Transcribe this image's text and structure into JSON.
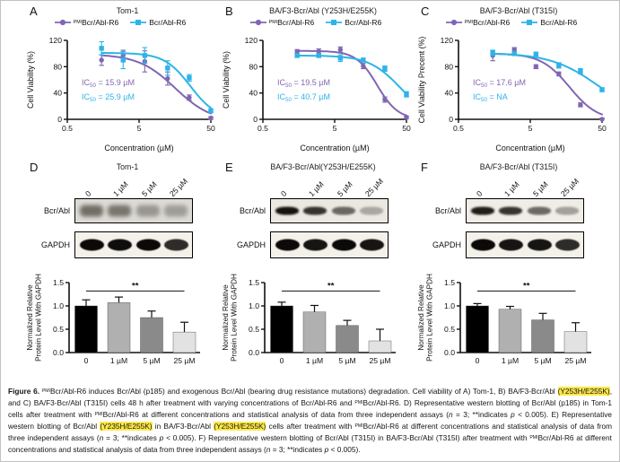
{
  "labels": {
    "pmi": "PMI"
  },
  "panels": [
    {
      "letter": "A"
    },
    {
      "letter": "B"
    },
    {
      "letter": "C"
    },
    {
      "letter": "D"
    },
    {
      "letter": "E"
    },
    {
      "letter": "F"
    }
  ],
  "chart_data": [
    {
      "id": "A",
      "type": "line-scatter",
      "title": "Tom-1",
      "xlabel": "Concentration (µM)",
      "ylabel": "Cell Viability (%)",
      "xscale": "log",
      "xlim": [
        0.5,
        50
      ],
      "xtick_values": [
        0.5,
        5,
        50
      ],
      "xticks": [
        "0.5",
        "5",
        "50"
      ],
      "ylim": [
        0,
        120
      ],
      "yticks": [
        0,
        40,
        80,
        120
      ],
      "legend_position": "top",
      "series": [
        {
          "name": "Bcr/Abl-R6",
          "name_sup": "PMI",
          "color": "#8066b2",
          "marker": "circle",
          "x": [
            1.5,
            3,
            6,
            12.5,
            25,
            50
          ],
          "y": [
            90,
            97,
            88,
            62,
            33,
            2
          ],
          "err": [
            8,
            8,
            16,
            10,
            4,
            2
          ],
          "fit": {
            "top": 99,
            "bottom": -4,
            "ic50": 15.9,
            "hill": 1.7
          }
        },
        {
          "name": "Bcr/Abl-R6",
          "name_sup": "",
          "color": "#2cb4e8",
          "marker": "square",
          "x": [
            1.5,
            3,
            6,
            12.5,
            25,
            50
          ],
          "y": [
            108,
            90,
            97,
            78,
            63,
            13
          ],
          "err": [
            10,
            13,
            12,
            11,
            5,
            3
          ],
          "fit": {
            "top": 101,
            "bottom": 0,
            "ic50": 25.9,
            "hill": 2.4
          }
        }
      ],
      "ic50_annotations": [
        {
          "prefix": "IC",
          "sub": "50",
          "text": " = 15.9 µM",
          "color": "#8066b2"
        },
        {
          "prefix": "IC",
          "sub": "50",
          "text": " = 25.9 µM",
          "color": "#2cb4e8"
        }
      ]
    },
    {
      "id": "B",
      "type": "line-scatter",
      "title": "BA/F3-Bcr/Abl (Y253H/E255K)",
      "xlabel": "Concentration (µM)",
      "ylabel": "Cell Viability (%)",
      "xscale": "log",
      "xlim": [
        0.5,
        50
      ],
      "xtick_values": [
        0.5,
        5,
        50
      ],
      "xticks": [
        "0.5",
        "5",
        "50"
      ],
      "ylim": [
        0,
        120
      ],
      "yticks": [
        0,
        40,
        80,
        120
      ],
      "legend_position": "top",
      "series": [
        {
          "name": "Bcr/Abl-R6",
          "name_sup": "PMI",
          "color": "#8066b2",
          "marker": "circle",
          "x": [
            1.5,
            3,
            6,
            12.5,
            25,
            50
          ],
          "y": [
            103,
            103,
            106,
            81,
            30,
            3
          ],
          "err": [
            3,
            4,
            4,
            4,
            4,
            2
          ],
          "fit": {
            "top": 104,
            "bottom": 0,
            "ic50": 19.5,
            "hill": 3.0
          }
        },
        {
          "name": "Bcr/Abl-R6",
          "name_sup": "",
          "color": "#2cb4e8",
          "marker": "square",
          "x": [
            1.5,
            3,
            6,
            12.5,
            25,
            50
          ],
          "y": [
            97,
            97,
            93,
            90,
            77,
            38
          ],
          "err": [
            3,
            3,
            5,
            3,
            4,
            4
          ],
          "fit": {
            "top": 97,
            "bottom": 0,
            "ic50": 40.7,
            "hill": 2.0
          }
        }
      ],
      "ic50_annotations": [
        {
          "prefix": "IC",
          "sub": "50",
          "text": " = 19.5 µM",
          "color": "#8066b2"
        },
        {
          "prefix": "IC",
          "sub": "50",
          "text": " = 40.7 µM",
          "color": "#2cb4e8"
        }
      ]
    },
    {
      "id": "C",
      "type": "line-scatter",
      "title": "BA/F3-Bcr/Abl (T315I)",
      "xlabel": "Concentration (µM)",
      "ylabel": "Cell Viability Precent (%)",
      "xscale": "log",
      "xlim": [
        0.5,
        50
      ],
      "xtick_values": [
        0.5,
        5,
        50
      ],
      "xticks": [
        "0.5",
        "5",
        "50"
      ],
      "ylim": [
        0,
        120
      ],
      "yticks": [
        0,
        40,
        80,
        120
      ],
      "legend_position": "top",
      "series": [
        {
          "name": "Bcr/Abl-R6",
          "name_sup": "PMI",
          "color": "#8066b2",
          "marker": "circle",
          "x": [
            1.5,
            3,
            6,
            12.5,
            25,
            50
          ],
          "y": [
            97,
            106,
            80,
            69,
            22,
            0
          ],
          "err": [
            8,
            3,
            3,
            3,
            3,
            2
          ],
          "fit": {
            "top": 100,
            "bottom": -2,
            "ic50": 17.6,
            "hill": 2.2
          }
        },
        {
          "name": "Bcr/Abl-R6",
          "name_sup": "",
          "color": "#2cb4e8",
          "marker": "square",
          "x": [
            1.5,
            3,
            6,
            12.5,
            25,
            50
          ],
          "y": [
            101,
            100,
            99,
            82,
            73,
            45
          ],
          "err": [
            4,
            3,
            3,
            4,
            4,
            3
          ],
          "fit": {
            "top": 101,
            "bottom": 0,
            "ic50": 45,
            "hill": 1.3
          }
        }
      ],
      "ic50_annotations": [
        {
          "prefix": "IC",
          "sub": "50",
          "text": " = 17.6 µM",
          "color": "#8066b2"
        },
        {
          "prefix": "IC",
          "sub": "50",
          "text": " = NA",
          "color": "#2cb4e8"
        }
      ]
    },
    {
      "id": "D",
      "type": "bar",
      "categories": [
        "0",
        "1 µM",
        "5 µM",
        "25 µM"
      ],
      "values": [
        1.0,
        1.07,
        0.75,
        0.44
      ],
      "errors": [
        0.13,
        0.12,
        0.14,
        0.21
      ],
      "bar_colors": [
        "#000000",
        "#b0b0b0",
        "#8a8a8a",
        "#e2e2e2"
      ],
      "ylabel_lines": [
        "Normalized Relative",
        "Protein Level With GAPDH"
      ],
      "ylim": [
        0,
        1.5
      ],
      "ytick_values": [
        0,
        0.5,
        1.0,
        1.5
      ],
      "yticks": [
        "0.0",
        "0.5",
        "1.0",
        "1.5"
      ],
      "significance": {
        "label": "**",
        "from": 0,
        "to": 3,
        "y": 1.32
      }
    },
    {
      "id": "E",
      "type": "bar",
      "categories": [
        "0",
        "1 µM",
        "5 µM",
        "25 µM"
      ],
      "values": [
        1.0,
        0.87,
        0.58,
        0.25
      ],
      "errors": [
        0.08,
        0.14,
        0.11,
        0.25
      ],
      "bar_colors": [
        "#000000",
        "#b0b0b0",
        "#8a8a8a",
        "#e2e2e2"
      ],
      "ylabel_lines": [
        "Normalized Relative",
        "Protein Level With GAPDH"
      ],
      "ylim": [
        0,
        1.5
      ],
      "ytick_values": [
        0,
        0.5,
        1.0,
        1.5
      ],
      "yticks": [
        "0.0",
        "0.5",
        "1.0",
        "1.5"
      ],
      "significance": {
        "label": "**",
        "from": 0,
        "to": 3,
        "y": 1.32
      }
    },
    {
      "id": "F",
      "type": "bar",
      "categories": [
        "0",
        "1 µM",
        "5 µM",
        "25 µM"
      ],
      "values": [
        1.0,
        0.93,
        0.7,
        0.45
      ],
      "errors": [
        0.05,
        0.06,
        0.14,
        0.19
      ],
      "bar_colors": [
        "#000000",
        "#b0b0b0",
        "#8a8a8a",
        "#e2e2e2"
      ],
      "ylabel_lines": [
        "Normalized Relative",
        "Protein Level With GAPDH"
      ],
      "ylim": [
        0,
        1.5
      ],
      "ytick_values": [
        0,
        0.5,
        1.0,
        1.5
      ],
      "yticks": [
        "0.0",
        "0.5",
        "1.0",
        "1.5"
      ],
      "significance": {
        "label": "**",
        "from": 0,
        "to": 3,
        "y": 1.32
      }
    }
  ],
  "blots": [
    {
      "panel": "D",
      "title": "Tom-1",
      "lanes": [
        "0",
        "1 µM",
        "5 µM",
        "25 µM"
      ],
      "rows": [
        {
          "label": "Bcr/Abl",
          "style": "fuzzy",
          "box_bg": "#dcdad4",
          "height": 26,
          "intensities": [
            0.8,
            0.75,
            0.5,
            0.45
          ]
        },
        {
          "label": "GAPDH",
          "style": "solid",
          "box_bg": "#f3f1ea",
          "height": 28,
          "intensities": [
            1,
            0.98,
            1,
            0.85
          ]
        }
      ]
    },
    {
      "panel": "E",
      "title": "BA/F3-Bcr/Abl(Y253H/E255K)",
      "lanes": [
        "0",
        "1 µM",
        "5 µM",
        "25 µM"
      ],
      "rows": [
        {
          "label": "Bcr/Abl",
          "style": "sharp",
          "box_bg": "#eae8e0",
          "height": 26,
          "intensities": [
            1,
            0.85,
            0.6,
            0.3
          ]
        },
        {
          "label": "GAPDH",
          "style": "solid",
          "box_bg": "#f3f1ea",
          "height": 28,
          "intensities": [
            1,
            0.95,
            1,
            0.95
          ]
        }
      ]
    },
    {
      "panel": "F",
      "title": "BA/F3-Bcr/Abl (T315I)",
      "lanes": [
        "0",
        "1 µM",
        "5 µM",
        "25 µM"
      ],
      "rows": [
        {
          "label": "Bcr/Abl",
          "style": "sharp",
          "box_bg": "#efede6",
          "height": 26,
          "intensities": [
            0.95,
            0.85,
            0.6,
            0.35
          ]
        },
        {
          "label": "GAPDH",
          "style": "solid",
          "box_bg": "#f3f1ea",
          "height": 28,
          "intensities": [
            1,
            0.95,
            0.95,
            0.85
          ]
        }
      ]
    }
  ],
  "figure": {
    "caption_segments": [
      {
        "t": "Figure 6.",
        "b": true
      },
      {
        "t": " "
      },
      {
        "t": "PMI",
        "sup": true
      },
      {
        "t": "Bcr/Abl-R6 induces Bcr/Abl (p185) and exogenous Bcr/Abl (bearing drug resistance mutations) degradation. Cell viability of A) Tom-1, B) BA/F3-Bcr/Abl "
      },
      {
        "t": "(Y253H/E255K)",
        "hl": true
      },
      {
        "t": ", and C) BA/F3-Bcr/Abl (T315I) cells 48 h after treatment with varying concentrations of Bcr/Abl-R6 and "
      },
      {
        "t": "PMI",
        "sup": true
      },
      {
        "t": "Bcr/Abl-R6. D) Representative western blotting of Bcr/Abl (p185) in Tom-1 cells after treatment with "
      },
      {
        "t": "PMI",
        "sup": true
      },
      {
        "t": "Bcr/Abl-R6 at different concentrations and statistical analysis of data from three independent assays ("
      },
      {
        "t": "n",
        "i": true
      },
      {
        "t": " = 3; **indicates "
      },
      {
        "t": "p",
        "i": true
      },
      {
        "t": " < 0.005). E) Representative western blotting of Bcr/Abl "
      },
      {
        "t": "(Y235H/E255K)",
        "hl": true
      },
      {
        "t": " in BA/F3-Bcr/Abl "
      },
      {
        "t": "(Y253H/E255K)",
        "hl": true
      },
      {
        "t": " cells after treatment with "
      },
      {
        "t": "PMI",
        "sup": true
      },
      {
        "t": "Bcr/Abl-R6 at different concentrations and statistical analysis of data from three independent assays ("
      },
      {
        "t": "n",
        "i": true
      },
      {
        "t": " = 3; **indicates "
      },
      {
        "t": "p",
        "i": true
      },
      {
        "t": " < 0.005). F) Representative western blotting of Bcr/Abl (T315I) in BA/F3-Bcr/Abl (T315I) after treatment with "
      },
      {
        "t": "PMI",
        "sup": true
      },
      {
        "t": "Bcr/Abl-R6 at different concentrations and statistical analysis of data from three independent assays ("
      },
      {
        "t": "n",
        "i": true
      },
      {
        "t": " = 3; **indicates "
      },
      {
        "t": "p",
        "i": true
      },
      {
        "t": " < 0.005)."
      }
    ]
  }
}
